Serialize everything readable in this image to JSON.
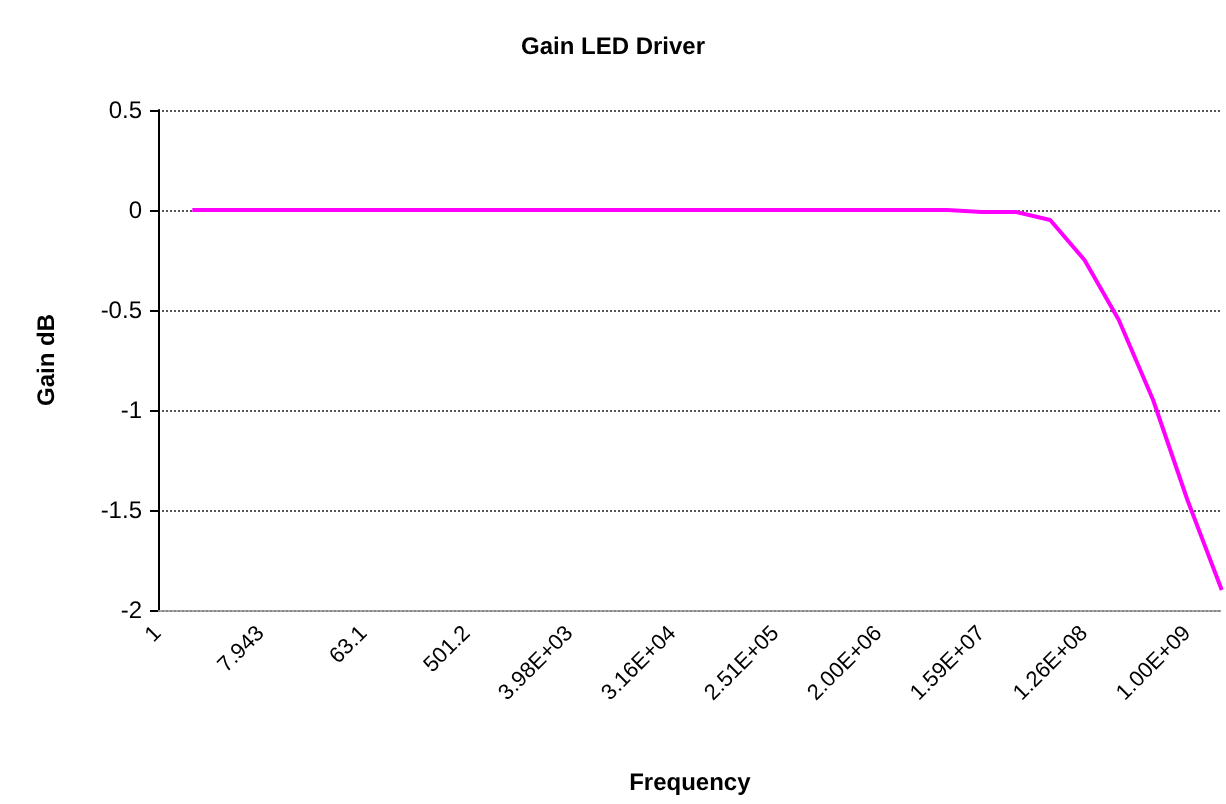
{
  "chart_data": {
    "type": "line",
    "title": "Gain LED Driver",
    "xlabel": "Frequency",
    "ylabel": "Gain dB",
    "categories": [
      "1",
      null,
      null,
      "7.943",
      null,
      null,
      "63.1",
      null,
      null,
      "501.2",
      null,
      null,
      "3.98E+03",
      null,
      null,
      "3.16E+04",
      null,
      null,
      "2.51E+05",
      null,
      null,
      "2.00E+06",
      null,
      null,
      "1.59E+07",
      null,
      null,
      "1.26E+08",
      null,
      null,
      "1.00E+09",
      null
    ],
    "series": [
      {
        "color": "#ff00ff",
        "values": [
          null,
          0,
          0,
          0,
          0,
          0,
          0,
          0,
          0,
          0,
          0,
          0,
          0,
          0,
          0,
          0,
          0,
          0,
          0,
          0,
          0,
          0,
          0,
          0,
          -0.01,
          -0.01,
          -0.05,
          -0.25,
          -0.55,
          -0.95,
          -1.45,
          -1.9
        ]
      }
    ],
    "ylim": [
      -2,
      0.5
    ],
    "yticks": [
      -2,
      -1.5,
      -1,
      -0.5,
      0,
      0.5
    ],
    "grid": "y",
    "marker": "none",
    "line_style": "solid"
  }
}
